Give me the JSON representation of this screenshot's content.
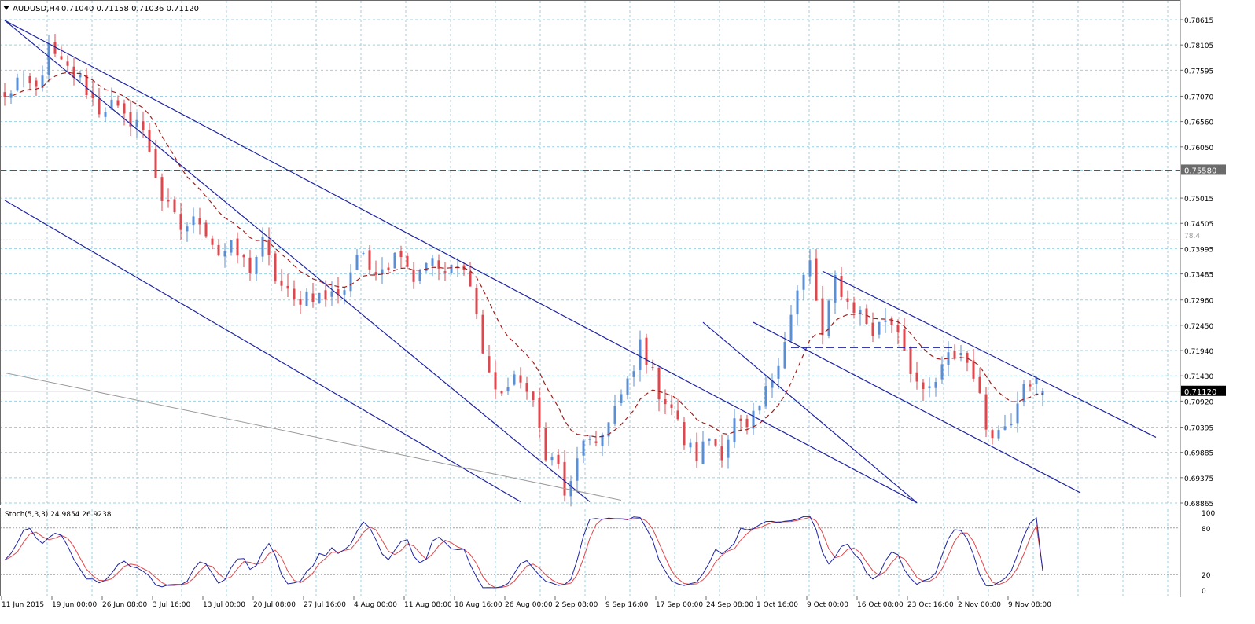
{
  "header": {
    "symbol": "AUDUSD,H4",
    "ohlc": "0.71040 0.71158 0.71036 0.71120"
  },
  "colors": {
    "background": "#ffffff",
    "grid": "#9ecfe0",
    "bull_candle": "#5b8fd4",
    "bear_candle": "#e0474c",
    "moving_average": "#a01e1e",
    "channel_lines": "#1e24a0",
    "horizontal_line": "#555555",
    "price_tag_bg": "#000000",
    "stoch_main": "#1e24a0",
    "stoch_signal": "#e0474c"
  },
  "main_panel": {
    "price_labels": [
      "0.78615",
      "0.78105",
      "0.77595",
      "0.77070",
      "0.76560",
      "0.76050",
      "0.75580",
      "0.75015",
      "0.74505",
      "0.73995",
      "0.73485",
      "0.72960",
      "0.72450",
      "0.71940",
      "0.71430",
      "0.71120",
      "0.70920",
      "0.70395",
      "0.69885",
      "0.69375",
      "0.68865"
    ],
    "horizontal_line_price": "0.75580",
    "current_price": "0.71120",
    "fib_label": "78.4"
  },
  "stoch_panel": {
    "label": "Stoch(5,3,3) 24.9854 26.9238",
    "levels": [
      "100",
      "80",
      "20",
      "0"
    ]
  },
  "time_axis": {
    "labels": [
      "11 Jun 2015",
      "19 Jun 00:00",
      "26 Jun 08:00",
      "3 Jul 16:00",
      "13 Jul 00:00",
      "20 Jul 08:00",
      "27 Jul 16:00",
      "4 Aug 00:00",
      "11 Aug 08:00",
      "18 Aug 16:00",
      "26 Aug 00:00",
      "2 Sep 08:00",
      "9 Sep 16:00",
      "17 Sep 00:00",
      "24 Sep 08:00",
      "1 Oct 16:00",
      "9 Oct 00:00",
      "16 Oct 08:00",
      "23 Oct 16:00",
      "2 Nov 00:00",
      "9 Nov 08:00"
    ]
  },
  "chart_data": {
    "type": "candlestick",
    "symbol": "AUDUSD",
    "timeframe": "H4",
    "ylim": [
      0.6887,
      0.788
    ],
    "x_categories": [
      "11 Jun 2015",
      "19 Jun 00:00",
      "26 Jun 08:00",
      "3 Jul 16:00",
      "13 Jul 00:00",
      "20 Jul 08:00",
      "27 Jul 16:00",
      "4 Aug 00:00",
      "11 Aug 08:00",
      "18 Aug 16:00",
      "26 Aug 00:00",
      "2 Sep 08:00",
      "9 Sep 16:00",
      "17 Sep 00:00",
      "24 Sep 08:00",
      "1 Oct 16:00",
      "9 Oct 00:00",
      "16 Oct 08:00",
      "23 Oct 16:00",
      "2 Nov 00:00",
      "9 Nov 08:00"
    ],
    "price_path_anchors": [
      [
        0,
        0.77
      ],
      [
        2,
        0.774
      ],
      [
        5,
        0.772
      ],
      [
        7,
        0.78
      ],
      [
        9,
        0.777
      ],
      [
        12,
        0.774
      ],
      [
        15,
        0.768
      ],
      [
        17,
        0.769
      ],
      [
        19,
        0.766
      ],
      [
        21,
        0.766
      ],
      [
        23,
        0.76
      ],
      [
        25,
        0.75
      ],
      [
        28,
        0.744
      ],
      [
        31,
        0.746
      ],
      [
        34,
        0.739
      ],
      [
        36,
        0.74
      ],
      [
        39,
        0.736
      ],
      [
        41,
        0.741
      ],
      [
        43,
        0.734
      ],
      [
        46,
        0.729
      ],
      [
        48,
        0.731
      ],
      [
        51,
        0.73
      ],
      [
        54,
        0.732
      ],
      [
        56,
        0.739
      ],
      [
        58,
        0.736
      ],
      [
        61,
        0.737
      ],
      [
        63,
        0.74
      ],
      [
        65,
        0.734
      ],
      [
        67,
        0.738
      ],
      [
        70,
        0.735
      ],
      [
        72,
        0.736
      ],
      [
        74,
        0.734
      ],
      [
        76,
        0.719
      ],
      [
        78,
        0.711
      ],
      [
        80,
        0.712
      ],
      [
        82,
        0.714
      ],
      [
        84,
        0.708
      ],
      [
        86,
        0.699
      ],
      [
        88,
        0.696
      ],
      [
        89,
        0.6905
      ],
      [
        90,
        0.692
      ],
      [
        92,
        0.702
      ],
      [
        94,
        0.699
      ],
      [
        96,
        0.706
      ],
      [
        98,
        0.71
      ],
      [
        100,
        0.715
      ],
      [
        101,
        0.721
      ],
      [
        102,
        0.718
      ],
      [
        104,
        0.711
      ],
      [
        106,
        0.708
      ],
      [
        108,
        0.701
      ],
      [
        110,
        0.698
      ],
      [
        112,
        0.702
      ],
      [
        114,
        0.699
      ],
      [
        116,
        0.705
      ],
      [
        118,
        0.703
      ],
      [
        120,
        0.708
      ],
      [
        122,
        0.714
      ],
      [
        124,
        0.722
      ],
      [
        126,
        0.731
      ],
      [
        128,
        0.737
      ],
      [
        130,
        0.722
      ],
      [
        132,
        0.734
      ],
      [
        134,
        0.729
      ],
      [
        136,
        0.727
      ],
      [
        138,
        0.723
      ],
      [
        140,
        0.726
      ],
      [
        142,
        0.724
      ],
      [
        144,
        0.716
      ],
      [
        146,
        0.71
      ],
      [
        148,
        0.713
      ],
      [
        150,
        0.718
      ],
      [
        152,
        0.719
      ],
      [
        154,
        0.715
      ],
      [
        156,
        0.704
      ],
      [
        158,
        0.703
      ],
      [
        160,
        0.706
      ],
      [
        162,
        0.714
      ],
      [
        164,
        0.713
      ],
      [
        165,
        0.7112
      ]
    ],
    "moving_average": {
      "type": "dashed",
      "shape": "smoothed price"
    },
    "horizontal_line": {
      "price": 0.7558,
      "style": "dashed"
    },
    "trend_lines": [
      {
        "name": "upper",
        "start": [
          0,
          0.786
        ],
        "end": [
          93,
          0.6889
        ]
      },
      {
        "name": "lower",
        "start": [
          0,
          0.7497
        ],
        "end": [
          82,
          0.6889
        ]
      },
      {
        "name": "grey",
        "start": [
          0,
          0.7149
        ],
        "end": [
          98,
          0.6892
        ]
      },
      {
        "name": "upper-mid",
        "start": [
          0,
          0.786
        ],
        "end": [
          145,
          0.6887
        ]
      },
      {
        "name": "lower-mid",
        "start": [
          111,
          0.7251
        ],
        "end": [
          145,
          0.6887
        ]
      },
      {
        "name": "small-upper",
        "start": [
          130,
          0.7354
        ],
        "end": [
          183,
          0.7019
        ]
      },
      {
        "name": "small-lower",
        "start": [
          119,
          0.7251
        ],
        "end": [
          171,
          0.6907
        ]
      },
      {
        "name": "support",
        "start": [
          125,
          0.72
        ],
        "end": [
          151,
          0.72
        ],
        "style": "dashed"
      }
    ],
    "stochastic": {
      "params": "5,3,3",
      "main": 24.9854,
      "signal": 26.9238,
      "levels": [
        80,
        20
      ],
      "range": [
        0,
        100
      ]
    }
  }
}
